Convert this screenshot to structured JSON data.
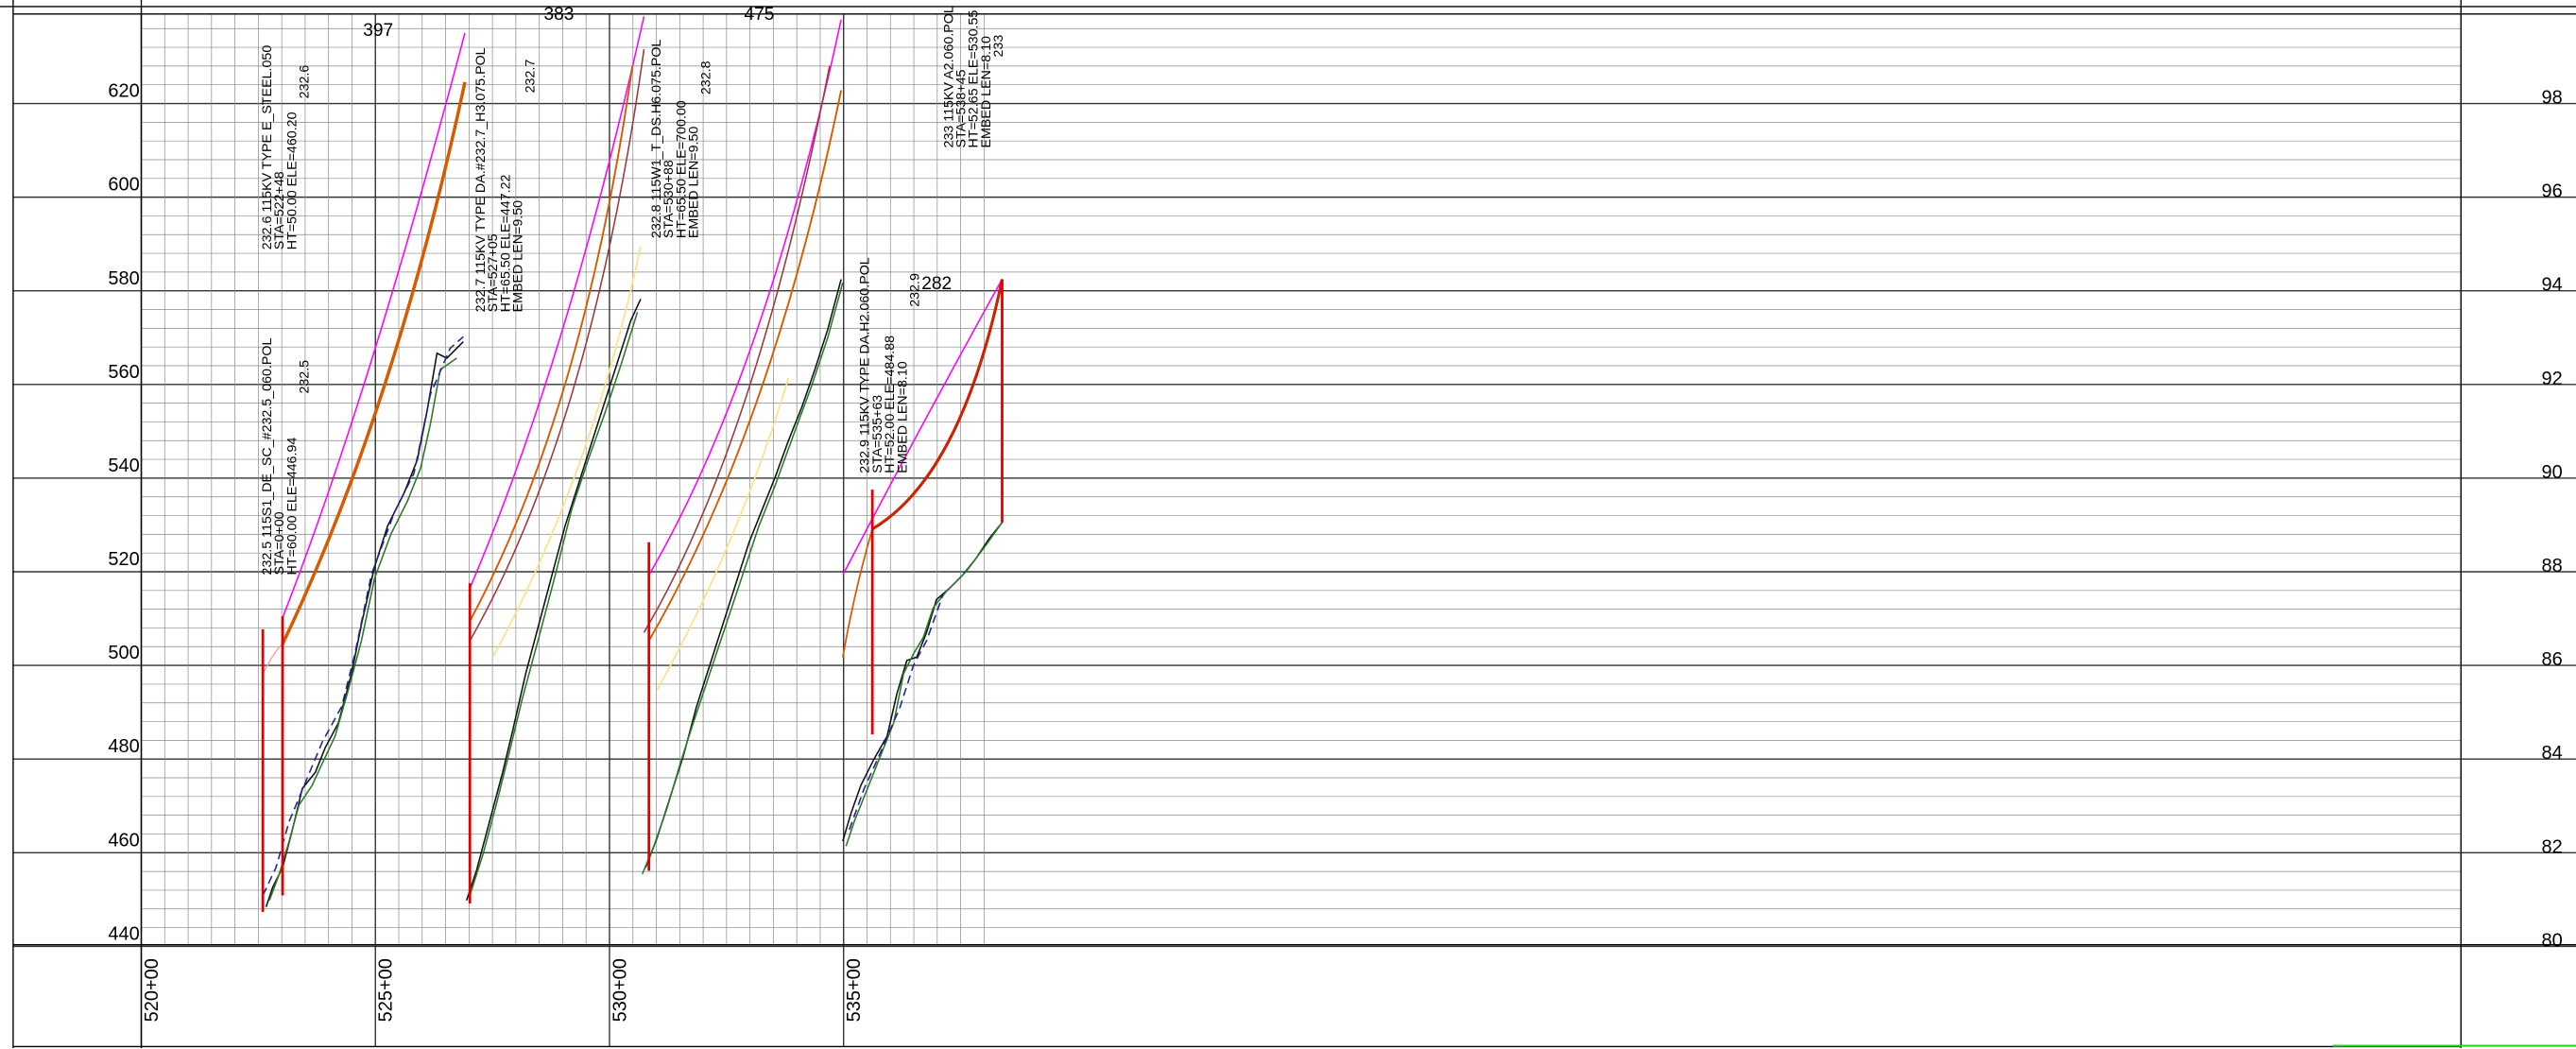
{
  "elevations_left": [
    620,
    600,
    580,
    560,
    540,
    520,
    500,
    480,
    460,
    440
  ],
  "elevations_right": [
    "98",
    "96",
    "94",
    "92",
    "90",
    "88",
    "86",
    "84",
    "82",
    "80"
  ],
  "stations": [
    "520+00",
    "525+00",
    "530+00",
    "535+00"
  ],
  "spans": [
    397,
    383,
    475,
    282
  ],
  "structures": [
    {
      "lines": [
        "232.6 115KV TYPE E_STEEL.050",
        "STA=522+48",
        "HT=50.00 ELE=460.20",
        "232.6"
      ]
    },
    {
      "lines": [
        "232.5 115S1_DE_SC_#232.5_060.POL",
        "STA=0+00",
        "HT=60.00 ELE=446.94",
        "232.5"
      ]
    },
    {
      "lines": [
        "232.7 115KV TYPE DA.#232.7_H3.075.POL",
        "STA=527+05",
        "HT=65.50 ELE=447.22",
        "EMBED LEN=9.50",
        "232.7"
      ]
    },
    {
      "lines": [
        "232.8 115W1_T_DS.H6.075.POL",
        "STA=530+88",
        "HT=65.50 ELE=700.00",
        "EMBED LEN=9.50",
        "232.8"
      ]
    },
    {
      "lines": [
        "232.9 115KV TYPE DA.H2.060.POL",
        "STA=535+63",
        "HT=52.00 ELE=484.88",
        "EMBED LEN=8.10",
        "232.9"
      ]
    },
    {
      "lines": [
        "233 115KV A2.060.POL",
        "STA=538+45",
        "HT=52.65 ELE=530.55",
        "EMBED LEN=8.10",
        "233"
      ]
    }
  ]
}
